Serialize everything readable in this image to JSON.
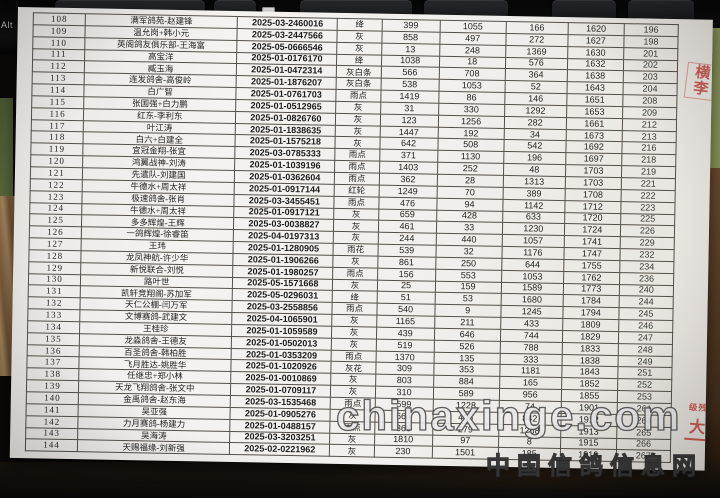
{
  "colors": {
    "stamp_red": "#c2453c",
    "watermark_white": "#ffffff"
  },
  "keyboard": {
    "alt_label": "Alt",
    "left_partial_label": "Alt"
  },
  "watermark": {
    "line1": "chinaxinge.com",
    "line2": "中国信鸽信息网"
  },
  "stamps": {
    "top_a": "横",
    "top_b": "李",
    "bottom_small": "级残",
    "bottom_large": "大"
  },
  "table": {
    "column_keys": [
      "rank",
      "loft-name",
      "ring-number",
      "feather-color",
      "value-1",
      "value-2",
      "value-3",
      "total",
      "sequence"
    ],
    "rows": [
      [
        "108",
        "满军鸽苑-赵建锋",
        "2025-03-2460016",
        "绛",
        "399",
        "1055",
        "166",
        "1620",
        "196"
      ],
      [
        "109",
        "温允岗+韩小元",
        "2025-03-2447566",
        "灰",
        "858",
        "497",
        "272",
        "1627",
        "198"
      ],
      [
        "110",
        "英阁鸽友俱乐部-王海富",
        "2025-05-0666546",
        "灰",
        "13",
        "248",
        "1369",
        "1630",
        "201"
      ],
      [
        "111",
        "高宝洋",
        "2025-01-0176170",
        "绛",
        "1038",
        "18",
        "576",
        "1632",
        "202"
      ],
      [
        "112",
        "臧玉海",
        "2025-01-0472314",
        "灰白条",
        "566",
        "708",
        "364",
        "1638",
        "203"
      ],
      [
        "113",
        "连发鸽舍-高俊岭",
        "2025-01-1876207",
        "灰白条",
        "538",
        "1053",
        "52",
        "1643",
        "204"
      ],
      [
        "114",
        "白广智",
        "2025-01-0761703",
        "雨点",
        "1419",
        "86",
        "146",
        "1651",
        "208"
      ],
      [
        "115",
        "张国强+白力鹏",
        "2025-01-0512965",
        "灰",
        "31",
        "330",
        "1292",
        "1653",
        "209"
      ],
      [
        "116",
        "红东-李利东",
        "2025-01-0826760",
        "灰",
        "123",
        "1256",
        "282",
        "1661",
        "212"
      ],
      [
        "117",
        "叶江涛",
        "2025-01-1838635",
        "灰",
        "1447",
        "192",
        "34",
        "1673",
        "213"
      ],
      [
        "118",
        "白六+白建全",
        "2025-01-1575218",
        "灰",
        "642",
        "508",
        "542",
        "1692",
        "216"
      ],
      [
        "119",
        "宜冠金翔-张宜",
        "2025-03-0785333",
        "雨点",
        "371",
        "1130",
        "196",
        "1697",
        "218"
      ],
      [
        "120",
        "鸿翼战神-刘涛",
        "2025-01-1039196",
        "雨点",
        "1403",
        "252",
        "48",
        "1703",
        "219"
      ],
      [
        "121",
        "先遣队-刘建国",
        "2025-01-0362604",
        "雨点",
        "362",
        "28",
        "1313",
        "1703",
        "221"
      ],
      [
        "122",
        "牛德水+周太祥",
        "2025-01-0917144",
        "红轮",
        "1249",
        "70",
        "389",
        "1708",
        "222"
      ],
      [
        "123",
        "极速鸽舍-张肖",
        "2025-03-3455451",
        "雨点",
        "476",
        "94",
        "1142",
        "1712",
        "223"
      ],
      [
        "124",
        "牛德水+周太祥",
        "2025-01-0917121",
        "灰",
        "659",
        "428",
        "633",
        "1720",
        "225"
      ],
      [
        "125",
        "多多辉煌-王辉",
        "2025-03-0038827",
        "灰",
        "461",
        "33",
        "1230",
        "1724",
        "226"
      ],
      [
        "126",
        "一鸽辉煌-徐睿笛",
        "2025-04-0197313",
        "灰",
        "244",
        "440",
        "1057",
        "1741",
        "229"
      ],
      [
        "127",
        "王玮",
        "2025-01-1280905",
        "雨花",
        "539",
        "32",
        "1176",
        "1747",
        "232"
      ],
      [
        "128",
        "龙凤神航-许少华",
        "2025-01-1906266",
        "灰",
        "861",
        "250",
        "644",
        "1755",
        "234"
      ],
      [
        "129",
        "新悦联合-刘悦",
        "2025-01-1980257",
        "雨点",
        "156",
        "553",
        "1053",
        "1762",
        "236"
      ],
      [
        "130",
        "路叶世",
        "2025-05-1571668",
        "灰",
        "25",
        "159",
        "1589",
        "1773",
        "240"
      ],
      [
        "131",
        "凯轩竞翔阁-苏加军",
        "2025-05-0296031",
        "绛",
        "51",
        "53",
        "1680",
        "1784",
        "244"
      ],
      [
        "132",
        "天仁公棚-闫万军",
        "2025-03-2558856",
        "雨点",
        "540",
        "9",
        "1245",
        "1794",
        "245"
      ],
      [
        "133",
        "文博赛鸽-武建文",
        "2025-04-1065901",
        "灰",
        "1165",
        "211",
        "433",
        "1809",
        "246"
      ],
      [
        "134",
        "王桂珍",
        "2025-01-1059589",
        "灰",
        "439",
        "646",
        "744",
        "1829",
        "247"
      ],
      [
        "135",
        "龙淼鸽舍-王德友",
        "2025-01-0502013",
        "灰",
        "519",
        "526",
        "788",
        "1833",
        "248"
      ],
      [
        "136",
        "百圣鸽舍-韩柏胜",
        "2025-01-0353209",
        "雨点",
        "1370",
        "135",
        "333",
        "1838",
        "249"
      ],
      [
        "137",
        "飞月胜达-姚胜华",
        "2025-01-1020926",
        "灰花",
        "309",
        "353",
        "1181",
        "1843",
        "251"
      ],
      [
        "138",
        "任继忠+郑小林",
        "2025-01-0010869",
        "灰",
        "803",
        "884",
        "165",
        "1852",
        "252"
      ],
      [
        "139",
        "天龙飞翔鸽舍-张文中",
        "2025-01-0709117",
        "灰",
        "310",
        "589",
        "956",
        "1855",
        "253"
      ],
      [
        "140",
        "金禹鸽舍-赵东海",
        "2025-03-1535468",
        "雨点",
        "599",
        "1228",
        "74",
        "1901",
        "261"
      ],
      [
        "141",
        "吴亚强",
        "2025-01-0905276",
        "灰",
        "664",
        "406",
        "842",
        "1912",
        "264"
      ],
      [
        "142",
        "力月赛鸽-杨建力",
        "2025-01-0488157",
        "雨点",
        "366",
        "279",
        "1268",
        "1913",
        "265"
      ],
      [
        "143",
        "吴海涛",
        "2025-03-3203251",
        "灰",
        "1810",
        "97",
        "8",
        "1915",
        "266"
      ],
      [
        "144",
        "天赐福缘-刘新强",
        "2025-02-0221962",
        "灰",
        "230",
        "1501",
        "185",
        "1916",
        "267"
      ]
    ]
  }
}
